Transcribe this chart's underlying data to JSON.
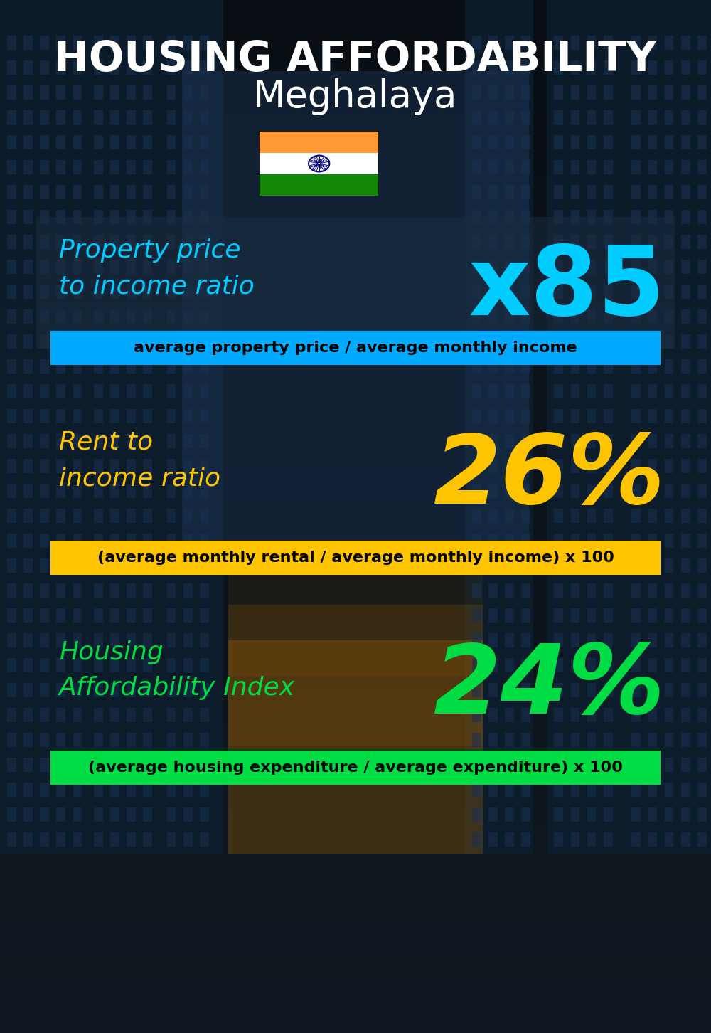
{
  "title_line1": "HOUSING AFFORDABILITY",
  "title_line2": "Meghalaya",
  "bg_color": "#0a1520",
  "section1_label": "Property price\nto income ratio",
  "section1_value": "x85",
  "section1_label_color": "#00ccff",
  "section1_value_color": "#00ccff",
  "section1_formula": "average property price / average monthly income",
  "section1_formula_bg": "#00aaff",
  "section2_label": "Rent to\nincome ratio",
  "section2_value": "26%",
  "section2_label_color": "#ffc400",
  "section2_value_color": "#ffc400",
  "section2_formula": "(average monthly rental / average monthly income) x 100",
  "section2_formula_bg": "#ffc400",
  "section3_label": "Housing\nAffordability Index",
  "section3_value": "24%",
  "section3_label_color": "#00dd44",
  "section3_value_color": "#00dd44",
  "section3_formula": "(average housing expenditure / average expenditure) x 100",
  "section3_formula_bg": "#00dd44",
  "title_color": "#ffffff",
  "title_fontsize": 42,
  "subtitle_fontsize": 38,
  "label_fontsize": 26,
  "value_fontsize": 88,
  "formula_fontsize": 16,
  "flag_saffron": "#ff9933",
  "flag_white": "#ffffff",
  "flag_green": "#138808",
  "flag_navy": "#000080"
}
